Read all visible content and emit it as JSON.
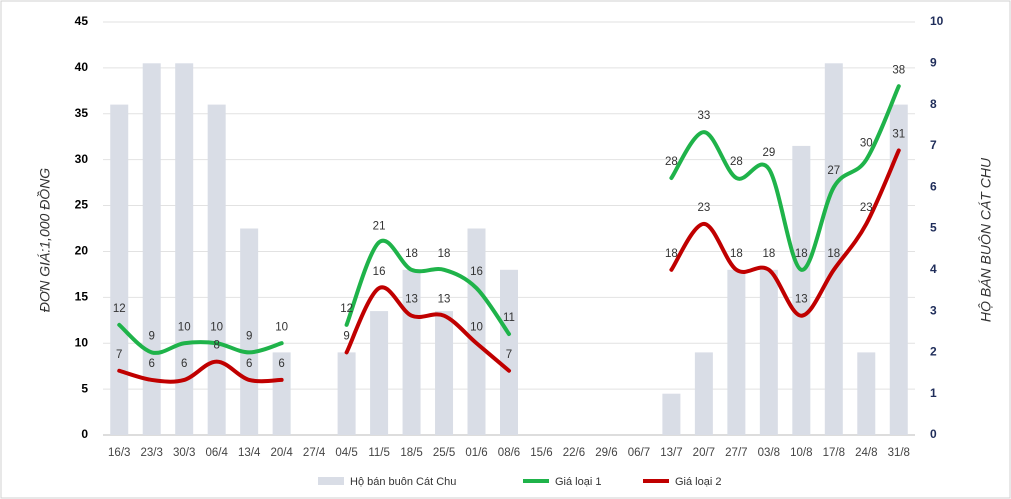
{
  "chart_data": {
    "type": "bar-line",
    "y_label": "ĐƠN GIÁ:1,000 ĐỒNG",
    "y2_label": "HỘ BÁN BUÔN CÁT CHU",
    "categories": [
      "16/3",
      "23/3",
      "30/3",
      "06/4",
      "13/4",
      "20/4",
      "27/4",
      "04/5",
      "11/5",
      "18/5",
      "25/5",
      "01/6",
      "08/6",
      "15/6",
      "22/6",
      "29/6",
      "06/7",
      "13/7",
      "20/7",
      "27/7",
      "03/8",
      "10/8",
      "17/8",
      "24/8",
      "31/8"
    ],
    "series": [
      {
        "name": "Hộ bán buôn Cát Chu",
        "kind": "bar",
        "axis": "y2",
        "color": "#d9dde6",
        "values": [
          8,
          9,
          9,
          8,
          5,
          2,
          null,
          2,
          3,
          4,
          3,
          5,
          4,
          null,
          null,
          null,
          null,
          1,
          2,
          4,
          4,
          7,
          9,
          2,
          8
        ]
      },
      {
        "name": "Giá loại 1",
        "kind": "line",
        "color": "#1fb34a",
        "values": [
          12,
          9,
          10,
          10,
          9,
          10,
          null,
          12,
          21,
          18,
          18,
          16,
          11,
          null,
          null,
          null,
          null,
          28,
          33,
          28,
          29,
          18,
          27,
          30,
          38
        ]
      },
      {
        "name": "Giá loại 2",
        "kind": "line",
        "color": "#c00000",
        "values": [
          7,
          6,
          6,
          8,
          6,
          6,
          null,
          9,
          16,
          13,
          13,
          10,
          7,
          null,
          null,
          null,
          null,
          18,
          23,
          18,
          18,
          13,
          18,
          23,
          31
        ]
      }
    ],
    "ylim": [
      0,
      45
    ],
    "yticks": [
      0,
      5,
      10,
      15,
      20,
      25,
      30,
      35,
      40,
      45
    ],
    "y2lim": [
      0,
      10
    ],
    "y2ticks": [
      0,
      1,
      2,
      3,
      4,
      5,
      6,
      7,
      8,
      9,
      10
    ],
    "grid": true
  }
}
